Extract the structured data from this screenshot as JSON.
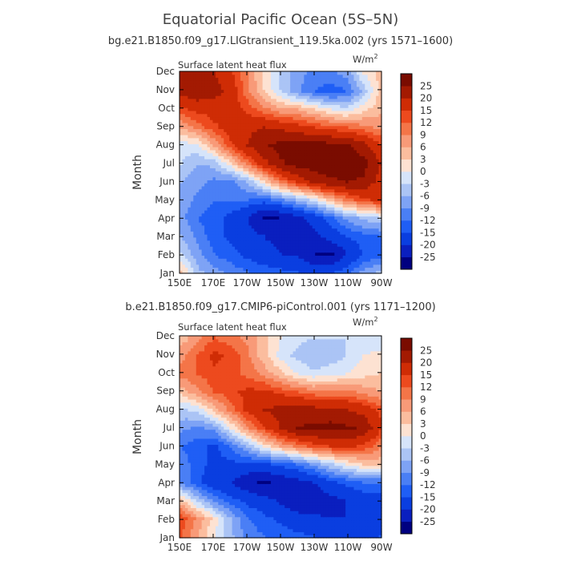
{
  "figure": {
    "title": "Equatorial Pacific Ocean (5S–5N)"
  },
  "panels": [
    {
      "subtitle": "bg.e21.B1850.f09_g17.LIGtransient_119.5ka.002 (yrs 1571–1600)",
      "label": "Surface latent heat flux",
      "units": "W/m",
      "units_sup": "2"
    },
    {
      "subtitle": "b.e21.B1850.f09_g17.CMIP6-piControl.001 (yrs 1171–1200)",
      "label": "Surface latent heat flux",
      "units": "W/m",
      "units_sup": "2"
    }
  ],
  "colors": {
    "levels": [
      "#000080",
      "#0a1fbf",
      "#0a3ee0",
      "#1f5ef5",
      "#4a7ff5",
      "#7ea3f5",
      "#abc4f5",
      "#d6e4fa",
      "#fde2d2",
      "#fbbd9e",
      "#f89a78",
      "#f47548",
      "#ed4a1e",
      "#cf2c05",
      "#a31a02",
      "#7a0c00"
    ]
  },
  "chart_data": [
    {
      "type": "heatmap",
      "title": "bg.e21.B1850.f09_g17.LIGtransient_119.5ka.002 (yrs 1571–1600)",
      "xlabel": "",
      "ylabel": "Month",
      "x_ticks": [
        "150E",
        "170E",
        "170W",
        "150W",
        "130W",
        "110W",
        "90W"
      ],
      "x_values": [
        150,
        170,
        190,
        210,
        230,
        250,
        270
      ],
      "y_ticks": [
        "Jan",
        "Feb",
        "Mar",
        "Apr",
        "May",
        "Jun",
        "Jul",
        "Aug",
        "Sep",
        "Oct",
        "Nov",
        "Dec"
      ],
      "colorbar_ticks": [
        "25",
        "20",
        "15",
        "12",
        "9",
        "6",
        "3",
        "0",
        "-3",
        "-6",
        "-9",
        "-12",
        "-15",
        "-20",
        "-25"
      ],
      "colorbar_levels": [
        -25,
        -20,
        -15,
        -12,
        -9,
        -6,
        -3,
        0,
        3,
        6,
        9,
        12,
        15,
        20,
        25
      ],
      "values": [
        [
          4,
          -5,
          -8,
          -10,
          -12,
          -13,
          -14,
          -15,
          -16,
          -16,
          -13,
          -8,
          -5
        ],
        [
          -3,
          -8,
          -12,
          -14,
          -16,
          -18,
          -20,
          -21,
          -25,
          -26,
          -20,
          -15,
          -14
        ],
        [
          -6,
          -10,
          -14,
          -16,
          -18,
          -20,
          -22,
          -21,
          -22,
          -18,
          -15,
          -13,
          -12
        ],
        [
          -8,
          -12,
          -14,
          -16,
          -20,
          -26,
          -25,
          -22,
          -18,
          -13,
          -8,
          -5,
          -3
        ],
        [
          -7,
          -10,
          -12,
          -12,
          -12,
          -13,
          -10,
          -6,
          -2,
          5,
          10,
          14,
          16
        ],
        [
          -6,
          -8,
          -10,
          -10,
          -6,
          2,
          10,
          16,
          21,
          24,
          25,
          24,
          18
        ],
        [
          -3,
          -6,
          -5,
          2,
          10,
          18,
          24,
          27,
          28,
          28,
          28,
          27,
          20
        ],
        [
          -2,
          -1,
          6,
          14,
          20,
          24,
          27,
          28,
          28,
          27,
          26,
          22,
          16
        ],
        [
          6,
          10,
          14,
          17,
          19,
          20,
          19,
          17,
          15,
          13,
          12,
          10,
          8
        ],
        [
          14,
          16,
          17,
          17,
          14,
          10,
          7,
          6,
          3,
          0,
          -2,
          2,
          5
        ],
        [
          22,
          24,
          22,
          18,
          10,
          3,
          -3,
          -8,
          -12,
          -14,
          -12,
          -5,
          4
        ],
        [
          22,
          22,
          20,
          16,
          9,
          2,
          -4,
          -8,
          -10,
          -10,
          -8,
          0,
          4
        ]
      ]
    },
    {
      "type": "heatmap",
      "title": "b.e21.B1850.f09_g17.CMIP6-piControl.001 (yrs 1171–1200)",
      "xlabel": "",
      "ylabel": "Month",
      "x_ticks": [
        "150E",
        "170E",
        "170W",
        "150W",
        "130W",
        "110W",
        "90W"
      ],
      "x_values": [
        150,
        170,
        190,
        210,
        230,
        250,
        270
      ],
      "y_ticks": [
        "Jan",
        "Feb",
        "Mar",
        "Apr",
        "May",
        "Jun",
        "Jul",
        "Aug",
        "Sep",
        "Oct",
        "Nov",
        "Dec"
      ],
      "colorbar_ticks": [
        "25",
        "20",
        "15",
        "12",
        "9",
        "6",
        "3",
        "0",
        "-3",
        "-6",
        "-9",
        "-12",
        "-15",
        "-20",
        "-25"
      ],
      "colorbar_levels": [
        -25,
        -20,
        -15,
        -12,
        -9,
        -6,
        -3,
        0,
        3,
        6,
        9,
        12,
        15,
        20,
        25
      ],
      "values": [
        [
          12,
          6,
          0,
          -5,
          -10,
          -12,
          -13,
          -14,
          -15,
          -16,
          -16,
          -16,
          -15
        ],
        [
          14,
          8,
          2,
          -6,
          -12,
          -14,
          -16,
          -18,
          -19,
          -20,
          -20,
          -19,
          -18
        ],
        [
          4,
          -4,
          -10,
          -14,
          -16,
          -18,
          -21,
          -24,
          -24,
          -22,
          -20,
          -18,
          -18
        ],
        [
          -10,
          -14,
          -18,
          -20,
          -24,
          -26,
          -24,
          -22,
          -20,
          -16,
          -14,
          -12,
          -12
        ],
        [
          -10,
          -14,
          -16,
          -16,
          -16,
          -16,
          -14,
          -12,
          -8,
          -4,
          0,
          3,
          4
        ],
        [
          -12,
          -14,
          -16,
          -12,
          -6,
          1,
          6,
          10,
          13,
          15,
          16,
          14,
          10
        ],
        [
          -8,
          -10,
          -8,
          0,
          8,
          14,
          20,
          25,
          26,
          27,
          26,
          24,
          16
        ],
        [
          -4,
          -2,
          4,
          10,
          16,
          20,
          22,
          23,
          22,
          21,
          20,
          18,
          14
        ],
        [
          4,
          8,
          12,
          14,
          16,
          16,
          14,
          12,
          10,
          10,
          10,
          8,
          6
        ],
        [
          10,
          12,
          14,
          13,
          11,
          8,
          4,
          0,
          -2,
          -1,
          0,
          2,
          3
        ],
        [
          8,
          12,
          16,
          14,
          10,
          4,
          -1,
          -4,
          -6,
          -5,
          -3,
          0,
          1
        ],
        [
          4,
          8,
          12,
          10,
          8,
          4,
          0,
          -2,
          -3,
          -3,
          -3,
          -2,
          -2
        ]
      ]
    }
  ]
}
